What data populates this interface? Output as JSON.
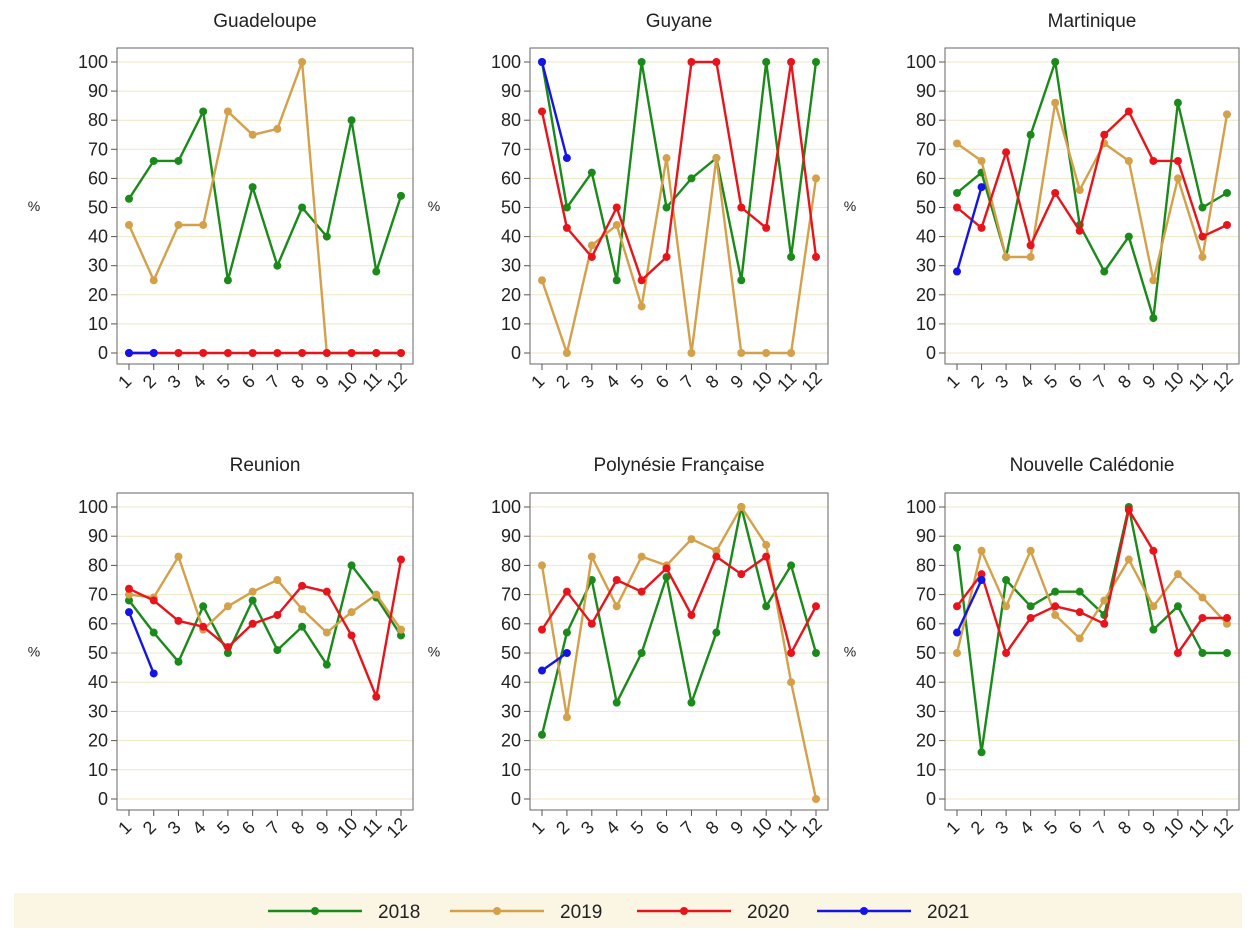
{
  "chart_data": {
    "type": "line",
    "xlabel": "",
    "ylabel": "%",
    "ylim": [
      0,
      100
    ],
    "yticks": [
      0,
      10,
      20,
      30,
      40,
      50,
      60,
      70,
      80,
      90,
      100
    ],
    "xticks": [
      "1",
      "2",
      "3",
      "4",
      "5",
      "6",
      "7",
      "8",
      "9",
      "10",
      "11",
      "12"
    ],
    "grid": "horizontal",
    "legend_position": "bottom",
    "series_styles": [
      {
        "name": "2018",
        "color": "#1a8a1a"
      },
      {
        "name": "2019",
        "color": "#d4a04a"
      },
      {
        "name": "2020",
        "color": "#e8141c"
      },
      {
        "name": "2021",
        "color": "#1414e6"
      }
    ],
    "panels": [
      {
        "title": "Guadeloupe",
        "series": [
          {
            "name": "2018",
            "values": [
              53,
              66,
              66,
              83,
              25,
              57,
              30,
              50,
              40,
              80,
              28,
              54
            ]
          },
          {
            "name": "2019",
            "values": [
              44,
              25,
              44,
              44,
              83,
              75,
              77,
              100,
              0,
              0,
              0,
              0
            ]
          },
          {
            "name": "2020",
            "values": [
              0,
              0,
              0,
              0,
              0,
              0,
              0,
              0,
              0,
              0,
              0,
              0
            ]
          },
          {
            "name": "2021",
            "values": [
              0,
              0
            ]
          }
        ]
      },
      {
        "title": "Guyane",
        "series": [
          {
            "name": "2018",
            "values": [
              100,
              50,
              62,
              25,
              100,
              50,
              60,
              67,
              25,
              100,
              33,
              100
            ]
          },
          {
            "name": "2019",
            "values": [
              25,
              0,
              37,
              44,
              16,
              67,
              0,
              67,
              0,
              0,
              0,
              60
            ]
          },
          {
            "name": "2020",
            "values": [
              83,
              43,
              33,
              50,
              25,
              33,
              100,
              100,
              50,
              43,
              100,
              33
            ]
          },
          {
            "name": "2021",
            "values": [
              100,
              67
            ]
          }
        ]
      },
      {
        "title": "Martinique",
        "series": [
          {
            "name": "2018",
            "values": [
              55,
              62,
              33,
              75,
              100,
              44,
              28,
              40,
              12,
              86,
              50,
              55
            ]
          },
          {
            "name": "2019",
            "values": [
              72,
              66,
              33,
              33,
              86,
              56,
              72,
              66,
              25,
              60,
              33,
              82
            ]
          },
          {
            "name": "2020",
            "values": [
              50,
              43,
              69,
              37,
              55,
              42,
              75,
              83,
              66,
              66,
              40,
              44
            ]
          },
          {
            "name": "2021",
            "values": [
              28,
              57
            ]
          }
        ]
      },
      {
        "title": "Reunion",
        "series": [
          {
            "name": "2018",
            "values": [
              68,
              57,
              47,
              66,
              50,
              68,
              51,
              59,
              46,
              80,
              69,
              56
            ]
          },
          {
            "name": "2019",
            "values": [
              70,
              69,
              83,
              58,
              66,
              71,
              75,
              65,
              57,
              64,
              70,
              58
            ]
          },
          {
            "name": "2020",
            "values": [
              72,
              68,
              61,
              59,
              52,
              60,
              63,
              73,
              71,
              56,
              35,
              82
            ]
          },
          {
            "name": "2021",
            "values": [
              64,
              43
            ]
          }
        ]
      },
      {
        "title": "Polynésie Française",
        "series": [
          {
            "name": "2018",
            "values": [
              22,
              57,
              75,
              33,
              50,
              76,
              33,
              57,
              100,
              66,
              80,
              50
            ]
          },
          {
            "name": "2019",
            "values": [
              80,
              28,
              83,
              66,
              83,
              80,
              89,
              85,
              100,
              87,
              40,
              0
            ]
          },
          {
            "name": "2020",
            "values": [
              58,
              71,
              60,
              75,
              71,
              79,
              63,
              83,
              77,
              83,
              50,
              66
            ]
          },
          {
            "name": "2021",
            "values": [
              44,
              50
            ]
          }
        ]
      },
      {
        "title": "Nouvelle Calédonie",
        "series": [
          {
            "name": "2018",
            "values": [
              86,
              16,
              75,
              66,
              71,
              71,
              63,
              100,
              58,
              66,
              50,
              50
            ]
          },
          {
            "name": "2019",
            "values": [
              50,
              85,
              66,
              85,
              63,
              55,
              68,
              82,
              66,
              77,
              69,
              60
            ]
          },
          {
            "name": "2020",
            "values": [
              66,
              77,
              50,
              62,
              66,
              64,
              60,
              99,
              85,
              50,
              62,
              62
            ]
          },
          {
            "name": "2021",
            "values": [
              57,
              75
            ]
          }
        ]
      }
    ]
  }
}
